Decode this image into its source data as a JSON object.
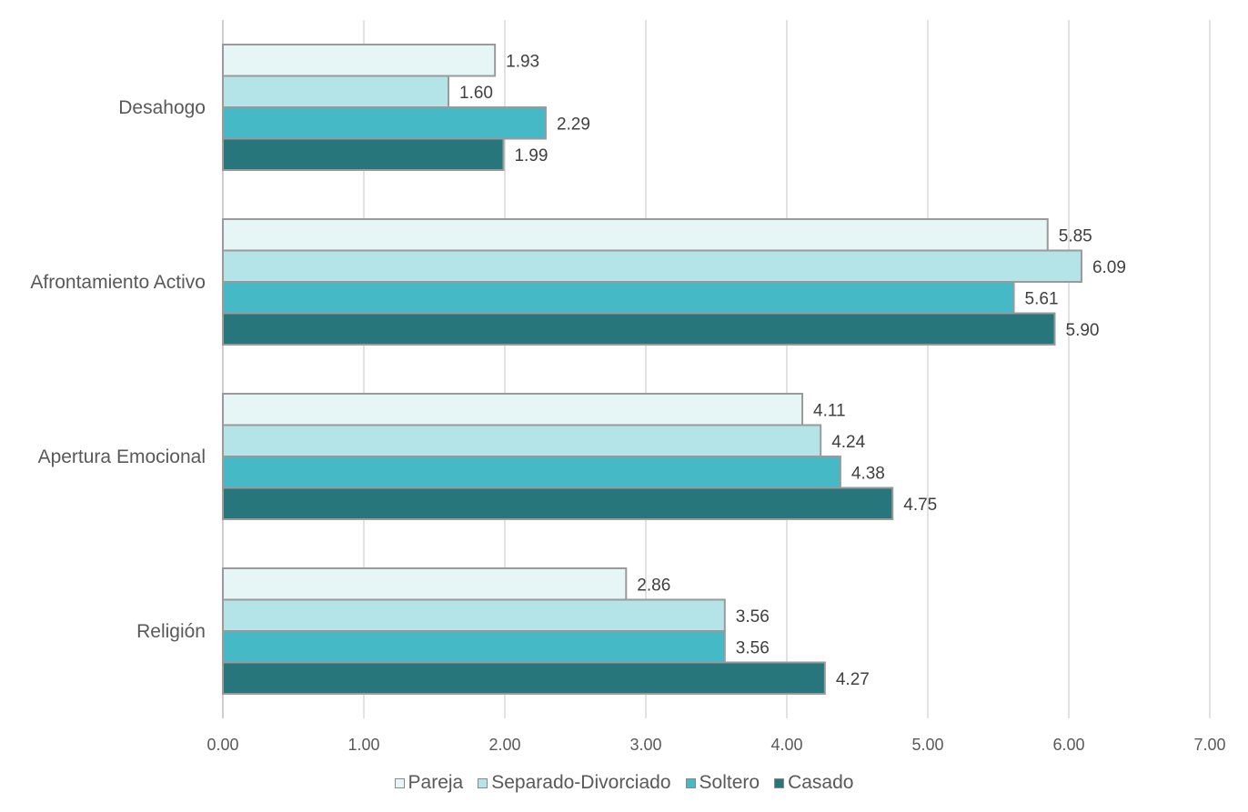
{
  "chart_data": {
    "type": "bar",
    "orientation": "horizontal",
    "categories": [
      "Desahogo",
      "Afrontamiento Activo",
      "Apertura Emocional",
      "Religión"
    ],
    "series": [
      {
        "name": "Pareja",
        "color": "#e6f6f6",
        "values": [
          1.93,
          5.85,
          4.11,
          2.86
        ],
        "labels": [
          "1.93",
          "5.85",
          "4.11",
          "2.86"
        ]
      },
      {
        "name": "Separado-Divorciado",
        "color": "#b4e4e8",
        "values": [
          1.6,
          6.09,
          4.24,
          3.56
        ],
        "labels": [
          "1.60",
          "6.09",
          "4.24",
          "3.56"
        ]
      },
      {
        "name": "Soltero",
        "color": "#45bac6",
        "values": [
          2.29,
          5.61,
          4.38,
          3.56
        ],
        "labels": [
          "2.29",
          "5.61",
          "4.38",
          "3.56"
        ]
      },
      {
        "name": "Casado",
        "color": "#26767c",
        "values": [
          1.99,
          5.9,
          4.75,
          4.27
        ],
        "labels": [
          "1.99",
          "5.90",
          "4.75",
          "4.27"
        ]
      }
    ],
    "xlim": [
      0,
      7
    ],
    "xticks": [
      "0.00",
      "1.00",
      "2.00",
      "3.00",
      "4.00",
      "5.00",
      "6.00",
      "7.00"
    ],
    "grid": "vertical",
    "legend": "bottom",
    "title": "",
    "xlabel": "",
    "ylabel": ""
  }
}
